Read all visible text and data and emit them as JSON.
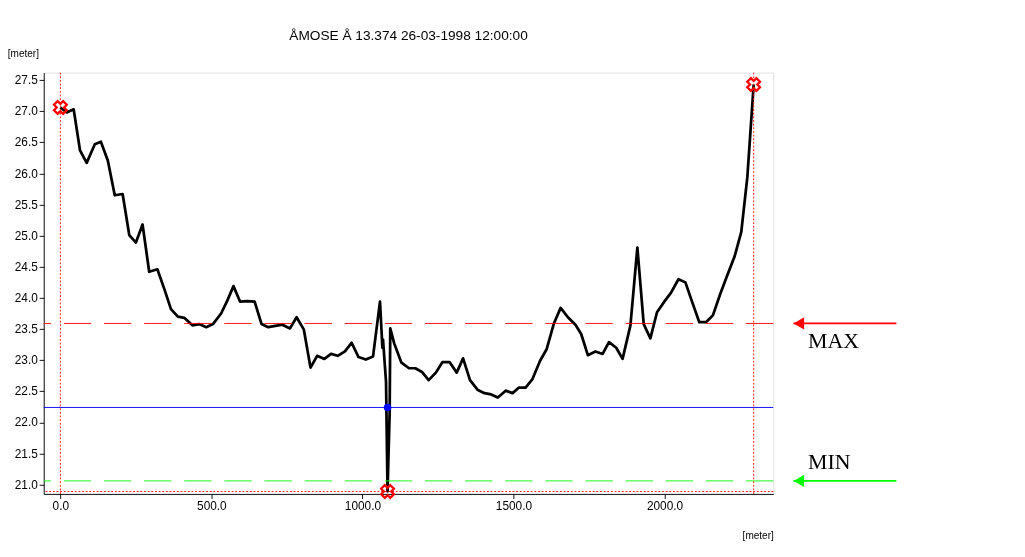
{
  "chart_data": {
    "type": "line",
    "title": "ÅMOSE Å  13.374  26-03-1998 12:00:00",
    "xlabel": "[meter]",
    "ylabel": "[meter]",
    "xlim": [
      -55,
      2360
    ],
    "ylim": [
      20.85,
      27.62
    ],
    "xticks": [
      {
        "value": 0,
        "label": "0.0"
      },
      {
        "value": 500,
        "label": "500.0"
      },
      {
        "value": 1000,
        "label": "1000.0"
      },
      {
        "value": 1500,
        "label": "1500.0"
      },
      {
        "value": 2000,
        "label": "2000.0"
      }
    ],
    "yticks": [
      {
        "value": 21,
        "label": "21.0"
      },
      21.5,
      {
        "value": 22,
        "label": "22.0"
      },
      22.5,
      {
        "value": 23,
        "label": "23.0"
      },
      23.5,
      {
        "value": 24,
        "label": "24.0"
      },
      24.5,
      {
        "value": 25,
        "label": "25.0"
      },
      25.5,
      {
        "value": 26,
        "label": "26.0"
      },
      26.5,
      {
        "value": 27,
        "label": "27.0"
      },
      27.5
    ],
    "series": [
      {
        "type": "line",
        "color": "#000000",
        "marker": "none",
        "line_style": "solid",
        "x": [
          0,
          21,
          44,
          65,
          87,
          114,
          134,
          157,
          180,
          206,
          228,
          250,
          272,
          294,
          321,
          345,
          366,
          389,
          410,
          437,
          459,
          483,
          505,
          532,
          551,
          573,
          595,
          619,
          643,
          666,
          688,
          735,
          760,
          782,
          806,
          828,
          850,
          874,
          896,
          918,
          942,
          964,
          987,
          1011,
          1035,
          1058,
          1066,
          1068,
          1078,
          1083,
          1090,
          1092,
          1105,
          1129,
          1154,
          1175,
          1197,
          1219,
          1243,
          1265,
          1288,
          1312,
          1333,
          1356,
          1382,
          1404,
          1426,
          1448,
          1474,
          1497,
          1518,
          1540,
          1562,
          1588,
          1610,
          1633,
          1656,
          1680,
          1705,
          1724,
          1746,
          1771,
          1795,
          1816,
          1840,
          1861,
          1887,
          1910,
          1931,
          1953,
          1975,
          1999,
          2021,
          2046,
          2069,
          2091,
          2115,
          2137,
          2160,
          2184,
          2208,
          2232,
          2254,
          2274,
          2295
        ],
        "values": [
          27.06,
          26.98,
          27.03,
          26.37,
          26.17,
          26.47,
          26.51,
          26.21,
          25.65,
          25.67,
          25.01,
          24.89,
          25.18,
          24.42,
          24.46,
          24.13,
          23.82,
          23.7,
          23.68,
          23.56,
          23.58,
          23.53,
          23.58,
          23.75,
          23.94,
          24.19,
          23.94,
          23.95,
          23.94,
          23.58,
          23.53,
          23.57,
          23.51,
          23.69,
          23.49,
          22.88,
          23.07,
          23.02,
          23.1,
          23.07,
          23.14,
          23.28,
          23.05,
          23.01,
          23.06,
          23.94,
          23.2,
          23.33,
          22.65,
          20.89,
          22.17,
          23.51,
          23.27,
          22.96,
          22.87,
          22.87,
          22.81,
          22.68,
          22.8,
          22.97,
          22.97,
          22.8,
          23.03,
          22.68,
          22.52,
          22.47,
          22.45,
          22.4,
          22.51,
          22.47,
          22.56,
          22.56,
          22.69,
          22.99,
          23.18,
          23.58,
          23.84,
          23.69,
          23.57,
          23.42,
          23.08,
          23.14,
          23.1,
          23.29,
          23.2,
          23.02,
          23.56,
          24.81,
          23.58,
          23.35,
          23.77,
          23.94,
          24.08,
          24.3,
          24.25,
          23.94,
          23.61,
          23.61,
          23.72,
          24.06,
          24.37,
          24.67,
          25.06,
          25.94,
          27.43
        ]
      },
      {
        "type": "scatter",
        "color": "#ff0000",
        "marker": "cross",
        "x": [
          0,
          1083,
          2295
        ],
        "values": [
          27.06,
          20.89,
          27.43
        ]
      },
      {
        "type": "scatter",
        "color": "#0000ff",
        "marker": "circle",
        "x": [
          1083
        ],
        "values": [
          22.24
        ]
      }
    ],
    "ref_lines": [
      {
        "axis": "y",
        "value": 23.59,
        "label": "MAX",
        "color": "#ff0000",
        "line_style": "dashed"
      },
      {
        "axis": "y",
        "value": 22.24,
        "color": "#0000ff",
        "line_style": "solid"
      },
      {
        "axis": "y",
        "value": 21.06,
        "label": "MIN",
        "color": "#00ff00",
        "line_style": "dashed"
      },
      {
        "axis": "y",
        "value": 20.89,
        "color": "#ff0000",
        "line_style": "dotted"
      },
      {
        "axis": "x",
        "value": 0,
        "color": "#ff0000",
        "line_style": "dotted"
      },
      {
        "axis": "x",
        "value": 2295,
        "color": "#ff0000",
        "line_style": "dotted"
      }
    ]
  }
}
